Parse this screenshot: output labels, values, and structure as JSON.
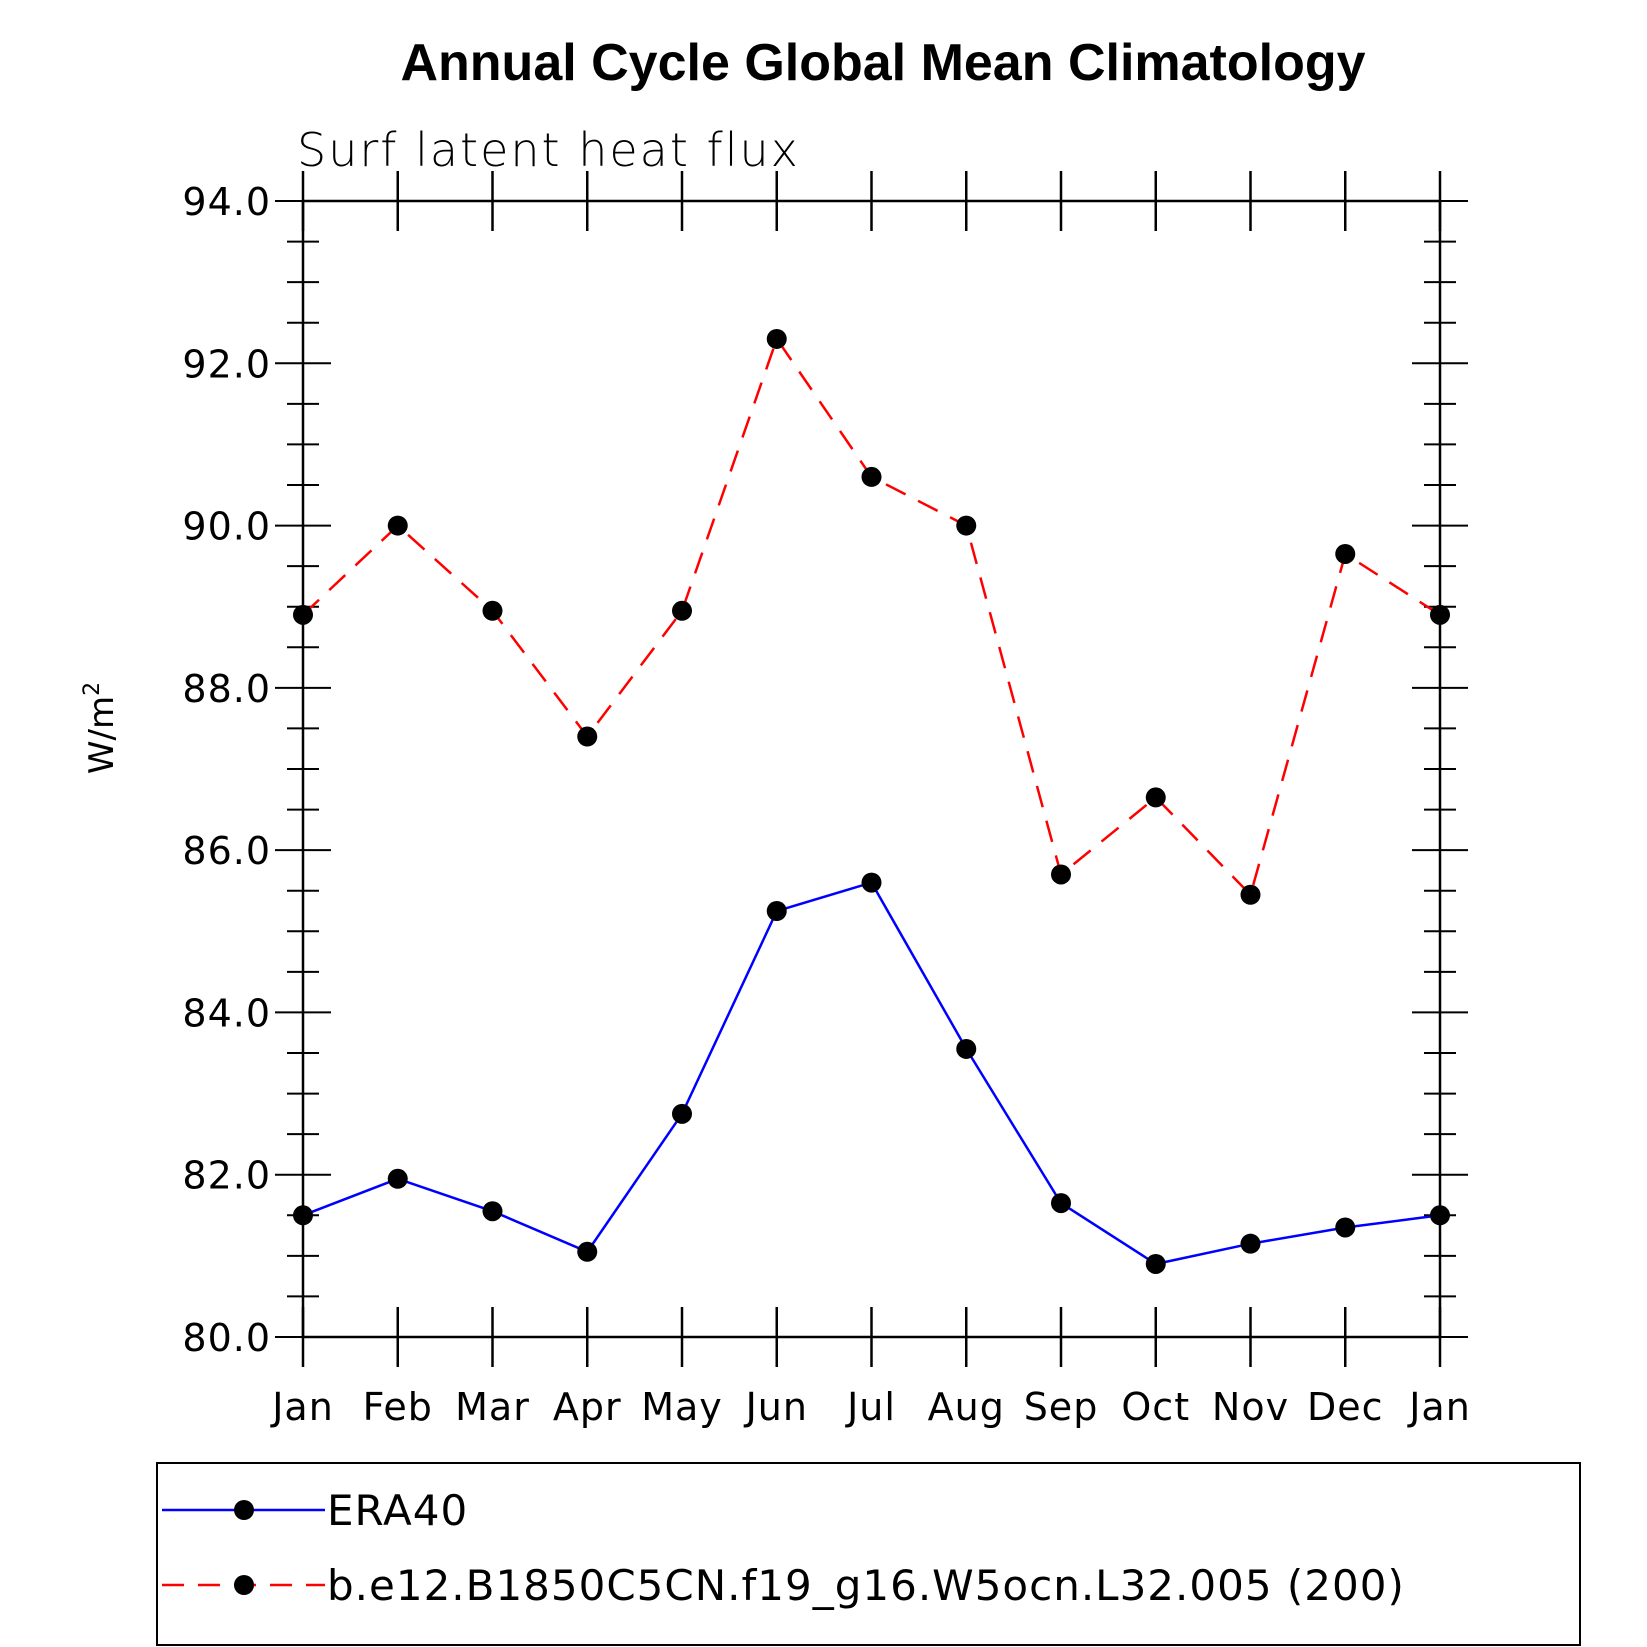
{
  "chart_data": {
    "type": "line",
    "title": "Annual Cycle Global Mean Climatology",
    "subtitle": "Surf latent heat flux",
    "ylabel": "W/m",
    "ylabel_superscript": "2",
    "xlabel": "",
    "categories": [
      "Jan",
      "Feb",
      "Mar",
      "Apr",
      "May",
      "Jun",
      "Jul",
      "Aug",
      "Sep",
      "Oct",
      "Nov",
      "Dec",
      "Jan"
    ],
    "ylim": [
      80.0,
      94.0
    ],
    "y_ticks": [
      "80.0",
      "82.0",
      "84.0",
      "86.0",
      "88.0",
      "90.0",
      "92.0",
      "94.0"
    ],
    "grid": false,
    "legend_position": "bottom",
    "series": [
      {
        "name": "ERA40",
        "color": "#0000ff",
        "line_style": "solid",
        "marker": "filled-circle",
        "values": [
          81.5,
          81.95,
          81.55,
          81.05,
          82.75,
          85.25,
          85.6,
          83.55,
          81.65,
          80.9,
          81.15,
          81.35,
          81.5
        ]
      },
      {
        "name": "b.e12.B1850C5CN.f19_g16.W5ocn.L32.005 (200)",
        "color": "#ff0000",
        "line_style": "dashed",
        "marker": "filled-circle",
        "values": [
          88.9,
          90.0,
          88.95,
          87.4,
          88.95,
          92.3,
          90.6,
          90.0,
          85.7,
          86.65,
          85.45,
          89.65,
          88.9
        ]
      }
    ]
  }
}
